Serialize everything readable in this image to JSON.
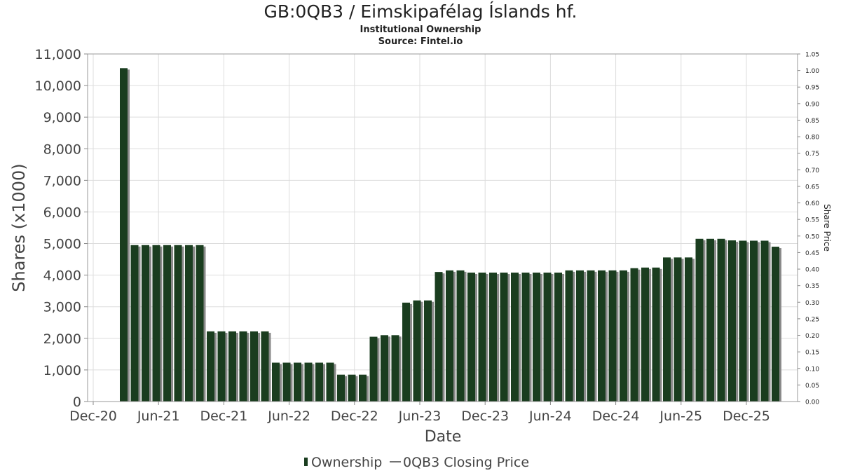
{
  "chart_data": {
    "type": "bar",
    "title": "GB:0QB3 / Eimskipafélag Íslands hf.",
    "subtitle": "Institutional Ownership",
    "source": "Source: Fintel.io",
    "xlabel": "Date",
    "ylabel": "Shares (x1000)",
    "y2label": "Share Price",
    "ylim": [
      0,
      11000
    ],
    "y2lim": [
      0,
      1.05
    ],
    "yticks": [
      "0",
      "1,000",
      "2,000",
      "3,000",
      "4,000",
      "5,000",
      "6,000",
      "7,000",
      "8,000",
      "9,000",
      "10,000",
      "11,000"
    ],
    "y2ticks": [
      "0.00",
      "0.05",
      "0.10",
      "0.15",
      "0.20",
      "0.25",
      "0.30",
      "0.35",
      "0.40",
      "0.45",
      "0.50",
      "0.55",
      "0.60",
      "0.65",
      "0.70",
      "0.75",
      "0.80",
      "0.85",
      "0.90",
      "0.95",
      "1.00",
      "1.05"
    ],
    "xticks": [
      "Dec-20",
      "Jun-21",
      "Dec-21",
      "Jun-22",
      "Dec-22",
      "Jun-23",
      "Dec-23",
      "Jun-24",
      "Dec-24",
      "Jun-25",
      "Dec-25"
    ],
    "grid": true,
    "legend_position": "bottom",
    "legend": [
      "Ownership",
      "0QB3 Closing Price"
    ],
    "bar_color": "#1a3d1f",
    "series": [
      {
        "name": "Ownership",
        "values": [
          10550,
          4950,
          4950,
          4950,
          4950,
          4950,
          4950,
          4950,
          2220,
          2220,
          2220,
          2220,
          2220,
          2220,
          1230,
          1230,
          1230,
          1230,
          1230,
          1230,
          850,
          850,
          850,
          2050,
          2100,
          2100,
          3130,
          3200,
          3200,
          4100,
          4150,
          4150,
          4080,
          4080,
          4080,
          4080,
          4080,
          4080,
          4080,
          4080,
          4080,
          4150,
          4150,
          4150,
          4150,
          4150,
          4150,
          4220,
          4240,
          4240,
          4560,
          4560,
          4560,
          5150,
          5150,
          5150,
          5100,
          5090,
          5090,
          5090,
          4900
        ]
      }
    ]
  }
}
